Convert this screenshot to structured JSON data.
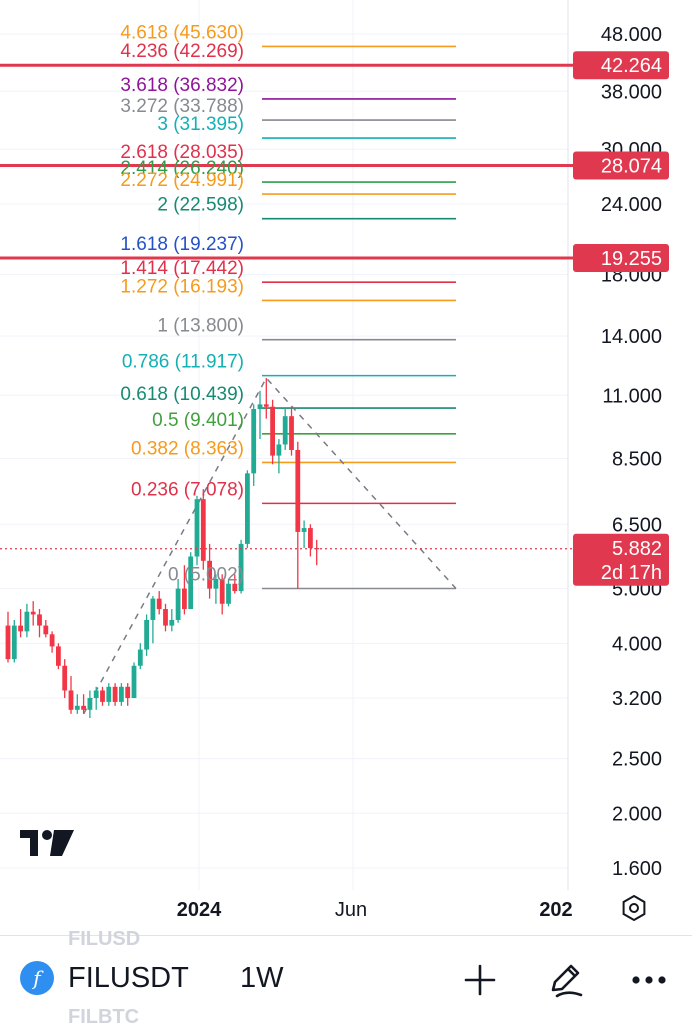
{
  "chart_data": {
    "type": "candlestick",
    "symbol": "FILUSDT",
    "interval": "1W",
    "y_axis": {
      "scale": "log",
      "ticks": [
        "48.000",
        "38.000",
        "30.000",
        "24.000",
        "18.000",
        "14.000",
        "11.000",
        "8.500",
        "6.500",
        "5.000",
        "4.000",
        "3.200",
        "2.500",
        "2.000",
        "1.600"
      ],
      "tick_values": [
        48,
        38,
        30,
        24,
        18,
        14,
        11,
        8.5,
        6.5,
        5,
        4,
        3.2,
        2.5,
        2,
        1.6
      ]
    },
    "x_axis": {
      "ticks": [
        "2024",
        "Jun",
        "202"
      ]
    },
    "fib_levels": [
      {
        "label": "4.618 (45.630)",
        "ratio": 4.618,
        "price": 45.63,
        "color": "#f59b1d"
      },
      {
        "label": "4.236 (42.269)",
        "ratio": 4.236,
        "price": 42.269,
        "color": "#e0314b"
      },
      {
        "label": "3.618 (36.832)",
        "ratio": 3.618,
        "price": 36.832,
        "color": "#8e1599"
      },
      {
        "label": "3.272 (33.788)",
        "ratio": 3.272,
        "price": 33.788,
        "color": "#888a91"
      },
      {
        "label": "3 (31.395)",
        "ratio": 3,
        "price": 31.395,
        "color": "#13b0b5"
      },
      {
        "label": "2.618 (28.035)",
        "ratio": 2.618,
        "price": 28.035,
        "color": "#e0314b"
      },
      {
        "label": "2.414 (26.240)",
        "ratio": 2.414,
        "price": 26.24,
        "color": "#2e9e4b"
      },
      {
        "label": "2.272 (24.991)",
        "ratio": 2.272,
        "price": 24.991,
        "color": "#f59b1d"
      },
      {
        "label": "2 (22.598)",
        "ratio": 2,
        "price": 22.598,
        "color": "#168a73"
      },
      {
        "label": "1.618 (19.237)",
        "ratio": 1.618,
        "price": 19.237,
        "color": "#2451c7"
      },
      {
        "label": "1.414 (17.442)",
        "ratio": 1.414,
        "price": 17.442,
        "color": "#e0314b"
      },
      {
        "label": "1.272 (16.193)",
        "ratio": 1.272,
        "price": 16.193,
        "color": "#f59b1d"
      },
      {
        "label": "1 (13.800)",
        "ratio": 1,
        "price": 13.8,
        "color": "#888a91"
      },
      {
        "label": "0.786 (11.917)",
        "ratio": 0.786,
        "price": 11.917,
        "color": "#13b0b5"
      },
      {
        "label": "0.618 (10.439)",
        "ratio": 0.618,
        "price": 10.439,
        "color": "#168a73"
      },
      {
        "label": "0.5 (9.401)",
        "ratio": 0.5,
        "price": 9.401,
        "color": "#41a03e"
      },
      {
        "label": "0.382 (8.363)",
        "ratio": 0.382,
        "price": 8.363,
        "color": "#f59b1d"
      },
      {
        "label": "0.236 (7.078)",
        "ratio": 0.236,
        "price": 7.078,
        "color": "#e0314b"
      },
      {
        "label": "0 (5.002)",
        "ratio": 0,
        "price": 5.002,
        "color": "#888a91"
      }
    ],
    "horizontal_lines": [
      {
        "price": 42.264,
        "label": "42.264",
        "color": "#e0394f"
      },
      {
        "price": 28.074,
        "label": "28.074",
        "color": "#e0394f"
      },
      {
        "price": 19.255,
        "label": "19.255",
        "color": "#e0394f"
      }
    ],
    "last_price": {
      "price": 5.882,
      "label": "5.882",
      "countdown": "2d 17h",
      "color": "#e0394f"
    },
    "candles": [
      {
        "o": 4.3,
        "h": 4.55,
        "l": 3.7,
        "c": 3.75
      },
      {
        "o": 3.75,
        "h": 4.4,
        "l": 3.7,
        "c": 4.3
      },
      {
        "o": 4.3,
        "h": 4.6,
        "l": 4.1,
        "c": 4.2
      },
      {
        "o": 4.2,
        "h": 4.7,
        "l": 4.1,
        "c": 4.55
      },
      {
        "o": 4.55,
        "h": 4.75,
        "l": 4.3,
        "c": 4.5
      },
      {
        "o": 4.5,
        "h": 4.6,
        "l": 4.1,
        "c": 4.3
      },
      {
        "o": 4.3,
        "h": 4.4,
        "l": 4.1,
        "c": 4.15
      },
      {
        "o": 4.15,
        "h": 4.2,
        "l": 3.85,
        "c": 3.95
      },
      {
        "o": 3.95,
        "h": 4.0,
        "l": 3.6,
        "c": 3.65
      },
      {
        "o": 3.65,
        "h": 3.75,
        "l": 3.2,
        "c": 3.3
      },
      {
        "o": 3.3,
        "h": 3.5,
        "l": 3.0,
        "c": 3.05
      },
      {
        "o": 3.05,
        "h": 3.25,
        "l": 3.0,
        "c": 3.1
      },
      {
        "o": 3.1,
        "h": 3.25,
        "l": 3.0,
        "c": 3.05
      },
      {
        "o": 3.05,
        "h": 3.3,
        "l": 2.95,
        "c": 3.2
      },
      {
        "o": 3.2,
        "h": 3.35,
        "l": 3.05,
        "c": 3.3
      },
      {
        "o": 3.3,
        "h": 3.35,
        "l": 3.1,
        "c": 3.15
      },
      {
        "o": 3.15,
        "h": 3.4,
        "l": 3.1,
        "c": 3.35
      },
      {
        "o": 3.35,
        "h": 3.4,
        "l": 3.1,
        "c": 3.15
      },
      {
        "o": 3.15,
        "h": 3.4,
        "l": 3.1,
        "c": 3.35
      },
      {
        "o": 3.35,
        "h": 3.4,
        "l": 3.1,
        "c": 3.2
      },
      {
        "o": 3.2,
        "h": 3.7,
        "l": 3.2,
        "c": 3.65
      },
      {
        "o": 3.65,
        "h": 4.0,
        "l": 3.6,
        "c": 3.9
      },
      {
        "o": 3.9,
        "h": 4.5,
        "l": 3.8,
        "c": 4.4
      },
      {
        "o": 4.4,
        "h": 4.85,
        "l": 4.0,
        "c": 4.8
      },
      {
        "o": 4.8,
        "h": 4.95,
        "l": 4.5,
        "c": 4.6
      },
      {
        "o": 4.6,
        "h": 4.7,
        "l": 4.2,
        "c": 4.3
      },
      {
        "o": 4.3,
        "h": 4.6,
        "l": 4.2,
        "c": 4.4
      },
      {
        "o": 4.4,
        "h": 5.2,
        "l": 4.35,
        "c": 5.0
      },
      {
        "o": 5.0,
        "h": 5.5,
        "l": 4.5,
        "c": 4.6
      },
      {
        "o": 4.6,
        "h": 5.8,
        "l": 4.6,
        "c": 5.7
      },
      {
        "o": 5.7,
        "h": 7.3,
        "l": 5.5,
        "c": 7.2
      },
      {
        "o": 7.2,
        "h": 7.5,
        "l": 5.4,
        "c": 5.6
      },
      {
        "o": 5.6,
        "h": 6.0,
        "l": 4.8,
        "c": 5.0
      },
      {
        "o": 5.0,
        "h": 5.3,
        "l": 4.7,
        "c": 5.2
      },
      {
        "o": 5.2,
        "h": 5.3,
        "l": 4.5,
        "c": 4.7
      },
      {
        "o": 4.7,
        "h": 5.2,
        "l": 4.65,
        "c": 5.1
      },
      {
        "o": 5.1,
        "h": 5.3,
        "l": 4.9,
        "c": 4.95
      },
      {
        "o": 4.95,
        "h": 6.1,
        "l": 4.9,
        "c": 6.0
      },
      {
        "o": 6.0,
        "h": 8.1,
        "l": 5.9,
        "c": 8.0
      },
      {
        "o": 8.0,
        "h": 10.6,
        "l": 7.6,
        "c": 10.4
      },
      {
        "o": 10.4,
        "h": 11.2,
        "l": 9.2,
        "c": 10.6
      },
      {
        "o": 10.6,
        "h": 11.8,
        "l": 10.0,
        "c": 10.5
      },
      {
        "o": 10.5,
        "h": 10.8,
        "l": 8.3,
        "c": 8.6
      },
      {
        "o": 8.6,
        "h": 9.2,
        "l": 8.0,
        "c": 9.0
      },
      {
        "o": 9.0,
        "h": 10.4,
        "l": 8.8,
        "c": 10.1
      },
      {
        "o": 10.1,
        "h": 10.5,
        "l": 8.6,
        "c": 8.8
      },
      {
        "o": 8.8,
        "h": 9.1,
        "l": 5.0,
        "c": 6.3
      },
      {
        "o": 6.3,
        "h": 6.6,
        "l": 5.9,
        "c": 6.4
      },
      {
        "o": 6.4,
        "h": 6.5,
        "l": 5.7,
        "c": 5.9
      },
      {
        "o": 5.9,
        "h": 6.1,
        "l": 5.5,
        "c": 5.882
      }
    ],
    "colors": {
      "up": "#22ab94",
      "down": "#f23645",
      "grid": "#f0f3fa",
      "text": "#131722"
    }
  },
  "bottom_bar": {
    "symbol": "FILUSDT",
    "interval": "1W",
    "ghost_top": "FILUSD",
    "ghost_bottom": "FILBTC",
    "symbol_icon_glyph": "f",
    "icons": [
      "filecoin-logo-icon",
      "plus-icon",
      "pencil-icon",
      "more-icon"
    ]
  },
  "watermark": "TradingView logo"
}
